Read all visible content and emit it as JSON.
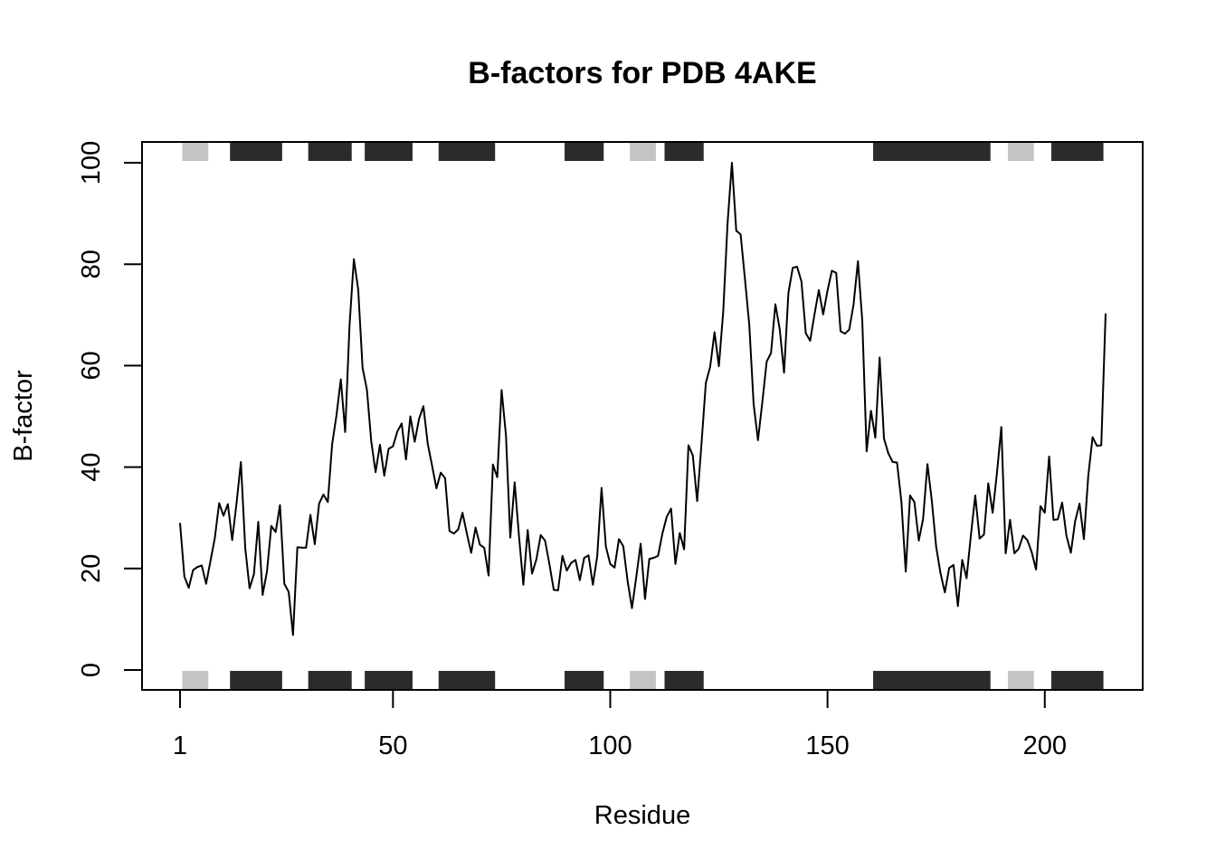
{
  "chart_data": {
    "type": "line",
    "title": "B-factors for PDB 4AKE",
    "xlabel": "Residue",
    "ylabel": "B-factor",
    "xlim": [
      1,
      214
    ],
    "ylim": [
      0,
      100
    ],
    "x_ticks": [
      1,
      50,
      100,
      150,
      200
    ],
    "y_ticks": [
      0,
      20,
      40,
      60,
      80,
      100
    ],
    "colors": {
      "line": "#000000",
      "helix": "#2b2b2b",
      "sheet": "#c4c4c4"
    },
    "secondary_structure": [
      {
        "type": "sheet",
        "start": 2,
        "end": 7
      },
      {
        "type": "helix",
        "start": 13,
        "end": 24
      },
      {
        "type": "helix",
        "start": 31,
        "end": 40
      },
      {
        "type": "helix",
        "start": 44,
        "end": 54
      },
      {
        "type": "helix",
        "start": 61,
        "end": 73
      },
      {
        "type": "helix",
        "start": 90,
        "end": 98
      },
      {
        "type": "sheet",
        "start": 105,
        "end": 110
      },
      {
        "type": "helix",
        "start": 113,
        "end": 121
      },
      {
        "type": "helix",
        "start": 161,
        "end": 187
      },
      {
        "type": "sheet",
        "start": 192,
        "end": 197
      },
      {
        "type": "helix",
        "start": 202,
        "end": 213
      }
    ],
    "series": [
      {
        "values": [
          29.0,
          18.4,
          16.2,
          19.7,
          20.3,
          20.6,
          17.0,
          21.5,
          26.0,
          32.9,
          30.4,
          32.7,
          25.6,
          32.9,
          41.0,
          24.1,
          16.1,
          18.9,
          29.2,
          14.8,
          19.4,
          28.4,
          27.2,
          32.5,
          17.0,
          15.4,
          6.9,
          24.2,
          24.1,
          24.1,
          30.6,
          24.8,
          32.8,
          34.6,
          33.1,
          44.5,
          50.2,
          57.3,
          46.9,
          67.9,
          81.0,
          75.0,
          59.6,
          55.3,
          45.1,
          39.0,
          44.4,
          38.3,
          43.6,
          44.1,
          47.0,
          48.6,
          41.5,
          50.0,
          45.0,
          49.5,
          52.0,
          44.6,
          40.3,
          35.8,
          38.9,
          37.8,
          27.4,
          26.9,
          27.7,
          31.0,
          26.9,
          23.1,
          28.1,
          24.7,
          24.1,
          18.6,
          40.5,
          38.0,
          55.2,
          46.3,
          26.1,
          37.0,
          26.4,
          16.8,
          27.6,
          19.0,
          21.8,
          26.6,
          25.5,
          20.9,
          15.8,
          15.7,
          22.5,
          19.6,
          21.1,
          21.7,
          17.7,
          22.1,
          22.6,
          16.8,
          22.4,
          35.9,
          24.3,
          20.9,
          20.2,
          25.8,
          24.4,
          17.5,
          12.2,
          18.4,
          24.9,
          14.0,
          21.9,
          22.1,
          22.5,
          26.9,
          30.2,
          31.8,
          20.9,
          27.0,
          23.8,
          44.3,
          42.3,
          33.3,
          44.6,
          56.6,
          59.8,
          66.6,
          59.9,
          70.6,
          88.1,
          100.0,
          86.6,
          85.9,
          77.1,
          68.0,
          52.4,
          45.3,
          52.8,
          60.8,
          62.5,
          72.1,
          67.2,
          58.6,
          74.3,
          79.3,
          79.5,
          76.6,
          66.4,
          64.9,
          70.1,
          74.9,
          70.1,
          74.8,
          78.7,
          78.3,
          66.8,
          66.3,
          67.1,
          72.1,
          80.6,
          68.9,
          43.1,
          51.1,
          45.8,
          61.6,
          45.6,
          42.7,
          41.0,
          40.9,
          33.2,
          19.4,
          34.4,
          33.1,
          25.5,
          29.8,
          40.6,
          33.4,
          24.3,
          19.1,
          15.3,
          20.1,
          20.7,
          12.6,
          21.7,
          18.1,
          26.6,
          34.4,
          25.9,
          26.7,
          36.8,
          31.0,
          38.9,
          47.9,
          23.0,
          29.6,
          23.0,
          23.9,
          26.5,
          25.6,
          23.2,
          19.8,
          32.3,
          31.0,
          42.1,
          29.6,
          29.7,
          33.0,
          26.4,
          23.1,
          29.4,
          32.8,
          25.8,
          38.2,
          45.9,
          44.2,
          44.3,
          70.3
        ]
      }
    ]
  }
}
